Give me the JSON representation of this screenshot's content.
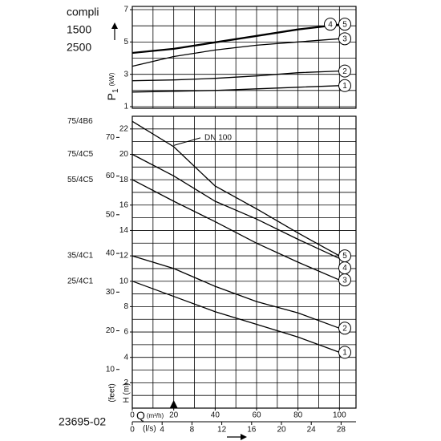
{
  "labels": {
    "brand": "compli",
    "speeds": [
      "1500",
      "2500"
    ],
    "code": "23695-02"
  },
  "chart_data": [
    {
      "type": "line",
      "ylabel": "P",
      "ylabel_sub": "1",
      "ylabel_unit": "(kW)",
      "x": [
        0,
        20,
        40,
        60,
        80,
        100
      ],
      "xlim": [
        0,
        108
      ],
      "xgrid": [
        0,
        10,
        20,
        30,
        40,
        50,
        60,
        70,
        80,
        90,
        100
      ],
      "ylim": [
        0.9,
        7.2
      ],
      "yticks": [
        1,
        3,
        5,
        7
      ],
      "ygrid": [
        1,
        2,
        3,
        4,
        5,
        6,
        7
      ],
      "series": [
        {
          "name": "1",
          "color": "#000000",
          "values": [
            1.9,
            1.95,
            2.0,
            2.1,
            2.2,
            2.3
          ]
        },
        {
          "name": "2",
          "color": "#000000",
          "values": [
            2.6,
            2.65,
            2.75,
            2.9,
            3.1,
            3.2
          ]
        },
        {
          "name": "3",
          "color": "#000000",
          "values": [
            3.5,
            4.1,
            4.5,
            4.8,
            5.0,
            5.2
          ]
        },
        {
          "name": "4",
          "color": "#000000",
          "values": [
            4.3,
            4.55,
            4.95,
            5.35,
            5.75,
            6.05
          ]
        },
        {
          "name": "5",
          "color": "#000000",
          "values": [
            4.35,
            4.6,
            5.0,
            5.4,
            5.8,
            6.1
          ]
        }
      ]
    },
    {
      "type": "line",
      "ylabel": "H (m)",
      "y2label": "(feet)",
      "xlabel": "Q",
      "xlabel_unit": "(m³/h)",
      "x2label": "(l/s)",
      "annotation": "DN 100",
      "x": [
        0,
        20,
        40,
        60,
        80,
        100
      ],
      "xlim": [
        0,
        108
      ],
      "xticks": [
        0,
        20,
        40,
        60,
        80,
        100
      ],
      "xgrid": [
        0,
        10,
        20,
        30,
        40,
        50,
        60,
        70,
        80,
        90,
        100
      ],
      "x2lim": [
        0,
        30
      ],
      "x2ticks": [
        0,
        4,
        8,
        12,
        16,
        20,
        24,
        28
      ],
      "ylim": [
        0,
        23
      ],
      "yticks": [
        2,
        4,
        6,
        8,
        10,
        12,
        14,
        16,
        18,
        20,
        22
      ],
      "ygrid": [
        0,
        1,
        2,
        3,
        4,
        5,
        6,
        7,
        8,
        9,
        10,
        11,
        12,
        13,
        14,
        15,
        16,
        17,
        18,
        19,
        20,
        21,
        22,
        23
      ],
      "y2lim": [
        0,
        75.46
      ],
      "y2ticks": [
        10,
        20,
        30,
        40,
        50,
        60,
        70
      ],
      "series": [
        {
          "name": "1",
          "model": "25/4C1",
          "color": "#000000",
          "values": [
            10.0,
            8.8,
            7.6,
            6.6,
            5.6,
            4.4
          ]
        },
        {
          "name": "2",
          "model": "35/4C1",
          "color": "#000000",
          "values": [
            12.0,
            11.0,
            9.6,
            8.4,
            7.5,
            6.3
          ]
        },
        {
          "name": "3",
          "model": "55/4C5",
          "color": "#000000",
          "values": [
            18.0,
            16.3,
            14.7,
            13.0,
            11.5,
            10.1
          ]
        },
        {
          "name": "4",
          "model": "75/4C5",
          "color": "#000000",
          "values": [
            20.0,
            18.3,
            16.3,
            14.9,
            13.3,
            11.8
          ]
        },
        {
          "name": "5",
          "model": "75/4B6",
          "color": "#000000",
          "values": [
            22.6,
            20.6,
            17.5,
            15.7,
            13.8,
            12.0
          ]
        }
      ]
    }
  ]
}
